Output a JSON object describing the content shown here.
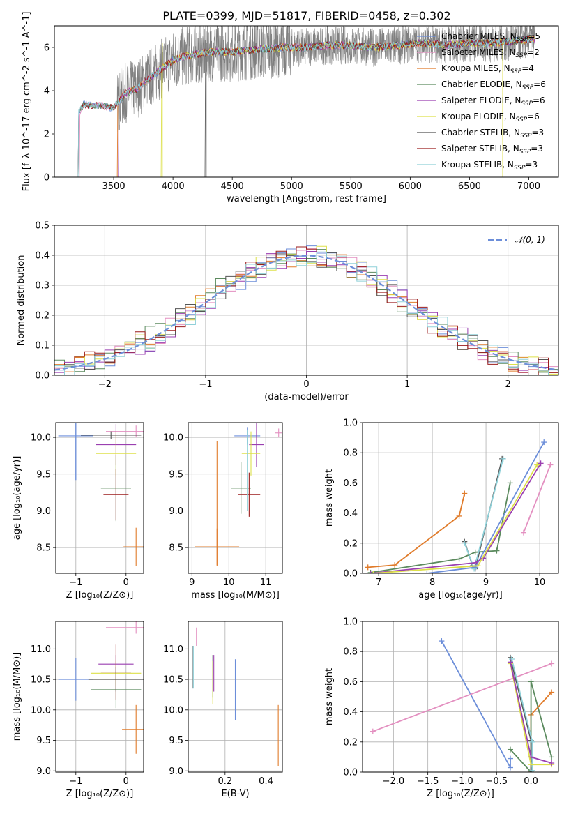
{
  "figure": {
    "title": "PLATE=0399, MJD=51817, FIBERID=0458, z=0.302",
    "colors": {
      "chabrier_miles": "#6c8ed9",
      "salpeter_miles": "#e38fc0",
      "kroupa_miles": "#e07b2a",
      "chabrier_elodie": "#5b8a5e",
      "salpeter_elodie": "#9a3fb0",
      "kroupa_elodie": "#dde04a",
      "chabrier_stelib": "#555555",
      "salpeter_stelib": "#9b1c1c",
      "kroupa_stelib": "#8fd0d8",
      "data": "#808080"
    }
  },
  "chart_data": [
    {
      "id": "spectrum",
      "type": "line",
      "xlabel": "wavelength [Angstrom, rest frame]",
      "ylabel": "Flux [f_λ 10^-17 erg cm^-2 s^-1 A^-1]",
      "xlim": [
        3000,
        7250
      ],
      "ylim": [
        0,
        7
      ],
      "xticks": [
        "3500",
        "4000",
        "4500",
        "5000",
        "5500",
        "6000",
        "6500",
        "7000"
      ],
      "yticks": [
        "0",
        "2",
        "4",
        "6"
      ],
      "legend_loc": "upper-right",
      "legend": [
        "Chabrier MILES, N_SSP=5",
        "Salpeter MILES, N_SSP=2",
        "Kroupa MILES, N_SSP=4",
        "Chabrier ELODIE, N_SSP=6",
        "Salpeter ELODIE, N_SSP=6",
        "Kroupa ELODIE, N_SSP=6",
        "Chabrier STELIB, N_SSP=3",
        "Salpeter STELIB, N_SSP=3",
        "Kroupa STELIB, N_SSP=3"
      ],
      "model_curve": {
        "x": [
          3200,
          3250,
          3300,
          3400,
          3500,
          3600,
          3700,
          3800,
          3900,
          4000,
          4100,
          4300,
          4500,
          4700,
          4900,
          5100,
          5300,
          5500,
          5700,
          5900,
          6100,
          6300,
          6500,
          6700,
          6900,
          7050
        ],
        "y": [
          2.9,
          3.4,
          3.3,
          3.3,
          3.2,
          3.9,
          4.1,
          4.6,
          5.0,
          5.4,
          5.6,
          5.8,
          5.8,
          5.9,
          6.0,
          6.0,
          6.1,
          6.1,
          6.0,
          6.1,
          6.2,
          6.1,
          6.2,
          6.2,
          6.3,
          6.4
        ]
      }
    },
    {
      "id": "residuals",
      "type": "line",
      "xlabel": "(data-model)/error",
      "ylabel": "Normed distribution",
      "xlim": [
        -2.5,
        2.5
      ],
      "ylim": [
        0,
        0.5
      ],
      "xticks": [
        "−2",
        "−1",
        "0",
        "1",
        "2"
      ],
      "yticks": [
        "0.0",
        "0.1",
        "0.2",
        "0.3",
        "0.4",
        "0.5"
      ],
      "legend": [
        "𝒩(0, 1)"
      ],
      "legend_loc": "upper-right",
      "gaussian": {
        "mean": 0,
        "sigma": 1,
        "color": "#6c8ed9"
      }
    },
    {
      "id": "age_vs_Z",
      "type": "scatter",
      "xlabel": "Z [log10(Z/Z⊙)]",
      "ylabel": "age  [log10(age/yr)]",
      "xlim": [
        -1.4,
        0.35
      ],
      "ylim": [
        8.15,
        10.2
      ],
      "xticks": [
        "−1",
        "0"
      ],
      "yticks": [
        "8.5",
        "9.0",
        "9.5",
        "10.0"
      ],
      "points": [
        {
          "x": -1.0,
          "y": 10.02,
          "xerr": 0.35,
          "yerr": 0.6,
          "c": "chabrier_miles"
        },
        {
          "x": -1.0,
          "y": 10.02,
          "xerr": 0.0,
          "yerr": 0.6,
          "c": "chabrier_miles"
        },
        {
          "x": 0.2,
          "y": 10.08,
          "xerr": 0.6,
          "yerr": 0.08,
          "c": "salpeter_miles"
        },
        {
          "x": 0.2,
          "y": 8.51,
          "xerr": 0.25,
          "yerr": 0.26,
          "c": "kroupa_miles"
        },
        {
          "x": -0.2,
          "y": 9.31,
          "xerr": 0.3,
          "yerr": 0.45,
          "c": "chabrier_elodie"
        },
        {
          "x": -0.2,
          "y": 9.9,
          "xerr": 0.4,
          "yerr": 0.28,
          "c": "salpeter_elodie"
        },
        {
          "x": -0.2,
          "y": 9.78,
          "xerr": 0.4,
          "yerr": 0.3,
          "c": "kroupa_elodie"
        },
        {
          "x": -0.2,
          "y": 9.22,
          "xerr": 0.25,
          "yerr": 0.35,
          "c": "salpeter_stelib"
        },
        {
          "x": -0.3,
          "y": 10.03,
          "xerr": 0.6,
          "yerr": 0.05,
          "c": "chabrier_stelib"
        }
      ]
    },
    {
      "id": "age_vs_mass",
      "type": "scatter",
      "xlabel": "mass [log10(M/M⊙)]",
      "ylabel": "",
      "xlim": [
        8.9,
        11.45
      ],
      "ylim": [
        8.15,
        10.2
      ],
      "xticks": [
        "9",
        "10",
        "11"
      ],
      "yticks": [
        "8.5",
        "9.0",
        "9.5",
        "10.0"
      ],
      "points": [
        {
          "x": 10.5,
          "y": 10.02,
          "xerr": 0.35,
          "yerr": 0.12,
          "c": "chabrier_miles"
        },
        {
          "x": 11.35,
          "y": 10.06,
          "xerr": 0.1,
          "yerr": 0.06,
          "c": "salpeter_miles"
        },
        {
          "x": 9.68,
          "y": 8.51,
          "xerr": 0.6,
          "yerr": 0.25,
          "c": "kroupa_miles"
        },
        {
          "x": 9.68,
          "y": 9.1,
          "xerr": 0.0,
          "yerr": 0.85,
          "c": "kroupa_miles"
        },
        {
          "x": 10.33,
          "y": 9.31,
          "xerr": 0.27,
          "yerr": 0.35,
          "c": "chabrier_elodie"
        },
        {
          "x": 10.75,
          "y": 9.9,
          "xerr": 0.2,
          "yerr": 0.3,
          "c": "salpeter_elodie"
        },
        {
          "x": 10.6,
          "y": 9.78,
          "xerr": 0.25,
          "yerr": 0.3,
          "c": "kroupa_elodie"
        },
        {
          "x": 10.55,
          "y": 9.22,
          "xerr": 0.3,
          "yerr": 0.3,
          "c": "salpeter_stelib"
        },
        {
          "x": 10.5,
          "y": 9.55,
          "xerr": 0.0,
          "yerr": 0.55,
          "c": "kroupa_stelib"
        }
      ]
    },
    {
      "id": "massweight_vs_age",
      "type": "line",
      "xlabel": "age  [log10(age/yr)]",
      "ylabel": "mass weight",
      "xlim": [
        6.7,
        10.35
      ],
      "ylim": [
        0,
        1
      ],
      "xticks": [
        "7",
        "8",
        "9",
        "10"
      ],
      "yticks": [
        "0.0",
        "0.2",
        "0.4",
        "0.6",
        "0.8",
        "1.0"
      ],
      "series": [
        {
          "c": "kroupa_miles",
          "x": [
            6.8,
            7.3,
            8.5,
            8.6
          ],
          "y": [
            0.04,
            0.055,
            0.38,
            0.53
          ]
        },
        {
          "c": "chabrier_elodie",
          "x": [
            6.85,
            8.5,
            8.8,
            9.2,
            9.45
          ],
          "y": [
            0.005,
            0.095,
            0.14,
            0.15,
            0.6
          ]
        },
        {
          "c": "chabrier_stelib",
          "x": [
            8.6,
            8.75,
            8.8,
            9.3
          ],
          "y": [
            0.21,
            0.05,
            0.03,
            0.76
          ]
        },
        {
          "c": "kroupa_stelib",
          "x": [
            8.6,
            8.78,
            9.32
          ],
          "y": [
            0.2,
            0.03,
            0.76
          ]
        },
        {
          "c": "chabrier_miles",
          "x": [
            7.9,
            8.8,
            10.08
          ],
          "y": [
            0.0,
            0.04,
            0.87
          ]
        },
        {
          "c": "salpeter_elodie",
          "x": [
            6.85,
            8.8,
            8.95,
            10.02
          ],
          "y": [
            0.0,
            0.07,
            0.1,
            0.73
          ]
        },
        {
          "c": "kroupa_elodie",
          "x": [
            6.9,
            8.85,
            9.95
          ],
          "y": [
            0.0,
            0.05,
            0.72
          ]
        },
        {
          "c": "salpeter_miles",
          "x": [
            9.7,
            10.2
          ],
          "y": [
            0.27,
            0.72
          ]
        }
      ]
    },
    {
      "id": "mass_vs_Z",
      "type": "scatter",
      "xlabel": "Z [log10(Z/Z⊙)]",
      "ylabel": "mass [log10(M/M⊙)]",
      "xlim": [
        -1.4,
        0.35
      ],
      "ylim": [
        8.98,
        11.45
      ],
      "xticks": [
        "−1",
        "0"
      ],
      "yticks": [
        "9.0",
        "9.5",
        "10.0",
        "10.5",
        "11.0"
      ],
      "points": [
        {
          "x": -1.0,
          "y": 10.5,
          "xerr": 0.35,
          "yerr": 0.35,
          "c": "chabrier_miles"
        },
        {
          "x": 0.2,
          "y": 11.35,
          "xerr": 0.6,
          "yerr": 0.1,
          "c": "salpeter_miles"
        },
        {
          "x": 0.2,
          "y": 9.68,
          "xerr": 0.28,
          "yerr": 0.4,
          "c": "kroupa_miles"
        },
        {
          "x": -0.2,
          "y": 10.33,
          "xerr": 0.5,
          "yerr": 0.3,
          "c": "chabrier_elodie"
        },
        {
          "x": -0.2,
          "y": 10.75,
          "xerr": 0.35,
          "yerr": 0.15,
          "c": "salpeter_elodie"
        },
        {
          "x": -0.2,
          "y": 10.6,
          "xerr": 0.5,
          "yerr": 0.2,
          "c": "kroupa_elodie"
        },
        {
          "x": -0.2,
          "y": 10.62,
          "xerr": 0.3,
          "yerr": 0.45,
          "c": "salpeter_stelib"
        },
        {
          "x": -0.2,
          "y": 10.5,
          "xerr": 0.55,
          "yerr": 0.2,
          "c": "chabrier_stelib"
        }
      ]
    },
    {
      "id": "mass_vs_EBV",
      "type": "scatter",
      "xlabel": "E(B-V)",
      "ylabel": "",
      "xlim": [
        0.02,
        0.48
      ],
      "ylim": [
        8.98,
        11.45
      ],
      "xticks": [
        "0.2",
        "0.4"
      ],
      "yticks": [
        "9.0",
        "9.5",
        "10.0",
        "10.5",
        "11.0"
      ],
      "points": [
        {
          "x": 0.04,
          "y": 10.7,
          "xerr": 0,
          "yerr": 0.35,
          "c": "chabrier_stelib"
        },
        {
          "x": 0.045,
          "y": 10.7,
          "xerr": 0,
          "yerr": 0.35,
          "c": "kroupa_stelib"
        },
        {
          "x": 0.06,
          "y": 11.2,
          "xerr": 0,
          "yerr": 0.15,
          "c": "salpeter_miles"
        },
        {
          "x": 0.14,
          "y": 10.55,
          "xerr": 0,
          "yerr": 0.35,
          "c": "chabrier_elodie"
        },
        {
          "x": 0.145,
          "y": 10.6,
          "xerr": 0,
          "yerr": 0.3,
          "c": "salpeter_elodie"
        },
        {
          "x": 0.14,
          "y": 10.45,
          "xerr": 0,
          "yerr": 0.35,
          "c": "kroupa_elodie"
        },
        {
          "x": 0.25,
          "y": 10.33,
          "xerr": 0,
          "yerr": 0.5,
          "c": "chabrier_miles"
        },
        {
          "x": 0.46,
          "y": 9.58,
          "xerr": 0,
          "yerr": 0.5,
          "c": "kroupa_miles"
        }
      ]
    },
    {
      "id": "massweight_vs_Z",
      "type": "line",
      "xlabel": "Z [log10(Z/Z⊙)]",
      "ylabel": "mass weight",
      "xlim": [
        -2.45,
        0.4
      ],
      "ylim": [
        0,
        1
      ],
      "xticks": [
        "−2.0",
        "−1.5",
        "−1.0",
        "−0.5",
        "0.0"
      ],
      "yticks": [
        "0.0",
        "0.2",
        "0.4",
        "0.6",
        "0.8",
        "1.0"
      ],
      "series": [
        {
          "c": "chabrier_miles",
          "x": [
            -1.3,
            -0.3,
            -0.3
          ],
          "y": [
            0.87,
            0.03,
            0.09
          ]
        },
        {
          "c": "salpeter_miles",
          "x": [
            -2.3,
            0.3
          ],
          "y": [
            0.27,
            0.72
          ]
        },
        {
          "c": "kroupa_miles",
          "x": [
            0.0,
            0.0,
            0.3
          ],
          "y": [
            0.0,
            0.38,
            0.53
          ]
        },
        {
          "c": "chabrier_elodie",
          "x": [
            -0.3,
            0.0,
            0.0,
            0.3
          ],
          "y": [
            0.15,
            0.0,
            0.6,
            0.1
          ]
        },
        {
          "c": "chabrier_stelib",
          "x": [
            -0.3,
            0.0,
            0.0
          ],
          "y": [
            0.76,
            0.21,
            0.0
          ]
        },
        {
          "c": "kroupa_stelib",
          "x": [
            -0.28,
            0.02,
            0.02
          ],
          "y": [
            0.75,
            0.2,
            0.01
          ]
        },
        {
          "c": "kroupa_elodie",
          "x": [
            -0.3,
            0.0,
            0.3
          ],
          "y": [
            0.72,
            0.05,
            0.05
          ]
        },
        {
          "c": "salpeter_elodie",
          "x": [
            -0.3,
            0.0,
            0.3
          ],
          "y": [
            0.73,
            0.1,
            0.06
          ]
        }
      ]
    }
  ]
}
